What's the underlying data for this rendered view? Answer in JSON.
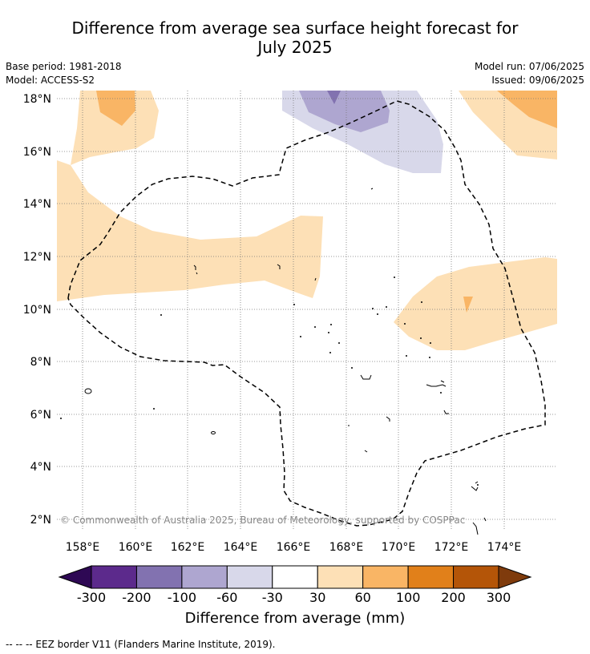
{
  "header": {
    "title_line1": "Difference from average sea surface height forecast for",
    "title_line2": "July 2025",
    "base_period": "Base period: 1981-2018",
    "model": "Model: ACCESS-S2",
    "model_run": "Model run: 07/06/2025",
    "issued": "Issued: 09/06/2025"
  },
  "map": {
    "lat_labels": [
      "18°N",
      "16°N",
      "14°N",
      "12°N",
      "10°N",
      "8°N",
      "6°N",
      "4°N",
      "2°N"
    ],
    "lon_labels": [
      "158°E",
      "160°E",
      "162°E",
      "164°E",
      "166°E",
      "168°E",
      "170°E",
      "172°E",
      "174°E"
    ],
    "copyright": "© Commonwealth of Australia 2025, Bureau of Meteorology, supported by COSPPac",
    "grid": true
  },
  "colorbar": {
    "title": "Difference from average (mm)",
    "tick_labels": [
      "-300",
      "-200",
      "-100",
      "-60",
      "-30",
      "30",
      "60",
      "100",
      "200",
      "300"
    ],
    "colors": [
      "#2e0854",
      "#5c2a8c",
      "#8272b0",
      "#aea6d0",
      "#d8d8ea",
      "#ffffff",
      "#fde0b6",
      "#f9b565",
      "#e1801a",
      "#b45508",
      "#7f3b0c"
    ]
  },
  "footer": {
    "legend_line": "--  --  -- EEZ border V11 (Flanders Marine Institute, 2019)."
  }
}
